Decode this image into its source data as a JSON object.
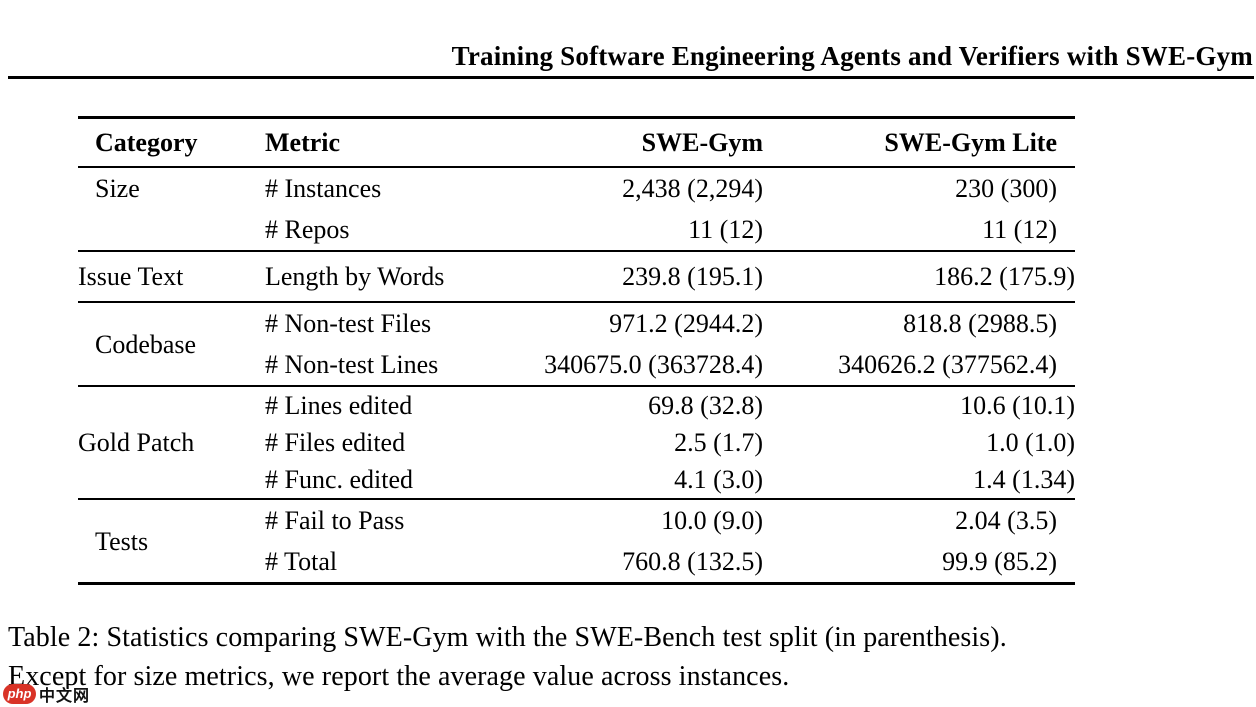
{
  "header": {
    "title": "Training Software Engineering Agents and Verifiers with SWE-Gym"
  },
  "table": {
    "columns": [
      "Category",
      "Metric",
      "SWE-Gym",
      "SWE-Gym Lite"
    ],
    "groups": [
      {
        "category": "Size",
        "rows": [
          [
            "# Instances",
            "2,438 (2,294)",
            "230 (300)"
          ],
          [
            "# Repos",
            "11 (12)",
            "11 (12)"
          ]
        ]
      },
      {
        "category": "Issue Text",
        "rows": [
          [
            "Length by Words",
            "239.8 (195.1)",
            "186.2 (175.9)"
          ]
        ]
      },
      {
        "category": "Codebase",
        "rows": [
          [
            "# Non-test Files",
            "971.2 (2944.2)",
            "818.8 (2988.5)"
          ],
          [
            "# Non-test Lines",
            "340675.0 (363728.4)",
            "340626.2 (377562.4)"
          ]
        ]
      },
      {
        "category": "Gold Patch",
        "rows": [
          [
            "# Lines edited",
            "69.8 (32.8)",
            "10.6 (10.1)"
          ],
          [
            "# Files edited",
            "2.5 (1.7)",
            "1.0 (1.0)"
          ],
          [
            "# Func. edited",
            "4.1 (3.0)",
            "1.4 (1.34)"
          ]
        ]
      },
      {
        "category": "Tests",
        "rows": [
          [
            "# Fail to Pass",
            "10.0 (9.0)",
            "2.04 (3.5)"
          ],
          [
            "# Total",
            "760.8 (132.5)",
            "99.9 (85.2)"
          ]
        ]
      }
    ]
  },
  "caption": {
    "line1": "Table 2: Statistics comparing SWE-Gym with the SWE-Bench test split (in parenthesis).",
    "line2": "Except for size metrics, we report the average value across instances."
  },
  "watermark": {
    "badge_text": "php",
    "site_text": "中文网",
    "badge_color": "#d93327"
  }
}
